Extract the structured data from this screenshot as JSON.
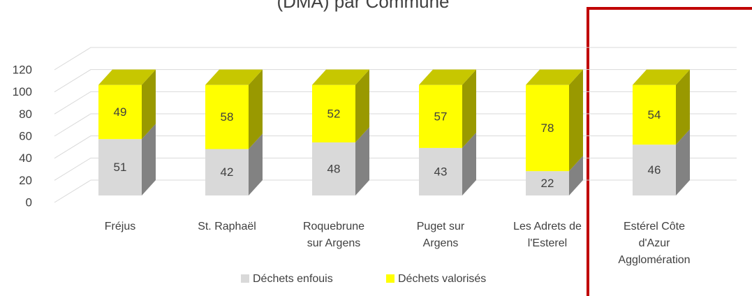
{
  "chart_data": {
    "type": "bar3d_stacked",
    "title": "(DMA)  par Commune",
    "categories": [
      "Fréjus",
      "St. Raphaël",
      "Roquebrune sur Argens",
      "Puget sur Argens",
      "Les Adrets de l'Esterel",
      "Estérel Côte d'Azur Agglomération"
    ],
    "series": [
      {
        "name": "Déchets enfouis",
        "color": "#d9d9d9",
        "values": [
          51,
          42,
          48,
          43,
          22,
          46
        ]
      },
      {
        "name": "Déchets valorisés",
        "color": "#ffff00",
        "values": [
          49,
          58,
          52,
          57,
          78,
          54
        ]
      }
    ],
    "ylim": [
      0,
      120
    ],
    "yticks": [
      0,
      20,
      40,
      60,
      80,
      100,
      120
    ],
    "grid": true,
    "legend": "bottom"
  }
}
